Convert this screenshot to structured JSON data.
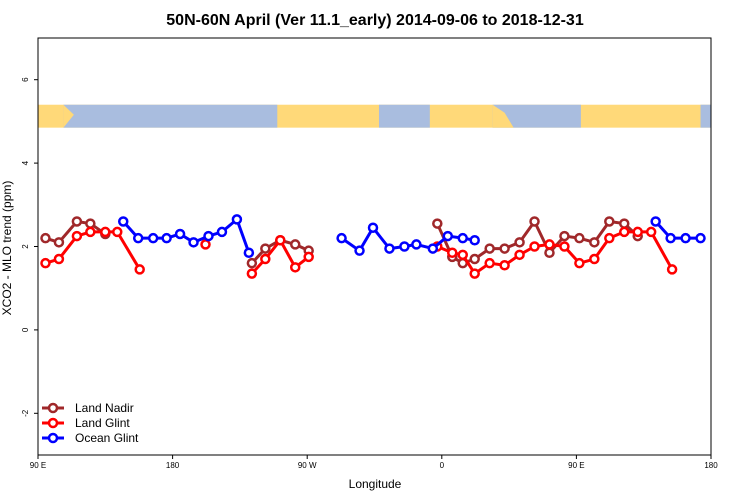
{
  "chart_data": {
    "type": "line",
    "title": "50N-60N April (Ver 11.1_early)   2014-09-06 to 2018-12-31",
    "xlabel": "Longitude",
    "ylabel": "XCO2 - MLO trend (ppm)",
    "xlim": [
      90,
      540
    ],
    "ylim": [
      -3,
      7
    ],
    "x_ticks": [
      {
        "value": 90,
        "label": "90 E"
      },
      {
        "value": 180,
        "label": "180"
      },
      {
        "value": 270,
        "label": "90 W"
      },
      {
        "value": 360,
        "label": "0"
      },
      {
        "value": 450,
        "label": "90 E"
      },
      {
        "value": 540,
        "label": "180"
      }
    ],
    "y_ticks": [
      -2,
      0,
      2,
      4,
      6
    ],
    "map_strip": {
      "y_from": 4.85,
      "y_to": 5.4,
      "land_color": "#FFD979",
      "ocean_color": "#A9BDDF"
    },
    "legend": {
      "position": "bottom-left"
    },
    "series": [
      {
        "name": "Land Nadir",
        "color": "#A0282A",
        "segments": [
          [
            [
              95,
              2.2
            ],
            [
              104,
              2.1
            ],
            [
              116,
              2.6
            ],
            [
              125,
              2.55
            ],
            [
              135,
              2.3
            ]
          ],
          [
            [
              233,
              1.6
            ],
            [
              242,
              1.95
            ],
            [
              252,
              2.15
            ],
            [
              262,
              2.05
            ],
            [
              271,
              1.9
            ]
          ],
          [
            [
              357,
              2.55
            ],
            [
              367,
              1.75
            ],
            [
              374,
              1.6
            ],
            [
              382,
              1.7
            ],
            [
              392,
              1.95
            ],
            [
              402,
              1.95
            ],
            [
              412,
              2.1
            ],
            [
              422,
              2.6
            ],
            [
              432,
              1.85
            ],
            [
              442,
              2.25
            ],
            [
              452,
              2.2
            ],
            [
              462,
              2.1
            ],
            [
              472,
              2.6
            ],
            [
              482,
              2.55
            ],
            [
              491,
              2.25
            ]
          ]
        ]
      },
      {
        "name": "Land Glint",
        "color": "#FF0000",
        "segments": [
          [
            [
              95,
              1.6
            ],
            [
              104,
              1.7
            ],
            [
              116,
              2.25
            ],
            [
              125,
              2.35
            ],
            [
              135,
              2.35
            ],
            [
              143,
              2.35
            ],
            [
              158,
              1.45
            ]
          ],
          [
            [
              202,
              2.05
            ]
          ],
          [
            [
              233,
              1.35
            ],
            [
              242,
              1.7
            ],
            [
              252,
              2.15
            ],
            [
              262,
              1.5
            ],
            [
              271,
              1.75
            ]
          ],
          [
            [
              357,
              2.0
            ],
            [
              367,
              1.85
            ],
            [
              374,
              1.8
            ],
            [
              382,
              1.35
            ],
            [
              392,
              1.6
            ],
            [
              402,
              1.55
            ],
            [
              412,
              1.8
            ],
            [
              422,
              2.0
            ],
            [
              432,
              2.05
            ],
            [
              442,
              2.0
            ],
            [
              452,
              1.6
            ],
            [
              462,
              1.7
            ],
            [
              472,
              2.2
            ],
            [
              482,
              2.35
            ],
            [
              491,
              2.35
            ],
            [
              500,
              2.35
            ],
            [
              514,
              1.45
            ]
          ]
        ]
      },
      {
        "name": "Ocean Glint",
        "color": "#0000FF",
        "segments": [
          [
            [
              147,
              2.6
            ],
            [
              157,
              2.2
            ],
            [
              167,
              2.2
            ],
            [
              176,
              2.2
            ],
            [
              185,
              2.3
            ],
            [
              194,
              2.1
            ],
            [
              204,
              2.25
            ],
            [
              213,
              2.35
            ],
            [
              223,
              2.65
            ],
            [
              231,
              1.85
            ]
          ],
          [
            [
              293,
              2.2
            ],
            [
              305,
              1.9
            ],
            [
              314,
              2.45
            ],
            [
              325,
              1.95
            ],
            [
              335,
              2.0
            ],
            [
              343,
              2.05
            ],
            [
              354,
              1.95
            ],
            [
              364,
              2.25
            ],
            [
              374,
              2.2
            ],
            [
              382,
              2.15
            ]
          ],
          [
            [
              503,
              2.6
            ],
            [
              513,
              2.2
            ],
            [
              523,
              2.2
            ],
            [
              533,
              2.2
            ]
          ]
        ]
      }
    ]
  }
}
